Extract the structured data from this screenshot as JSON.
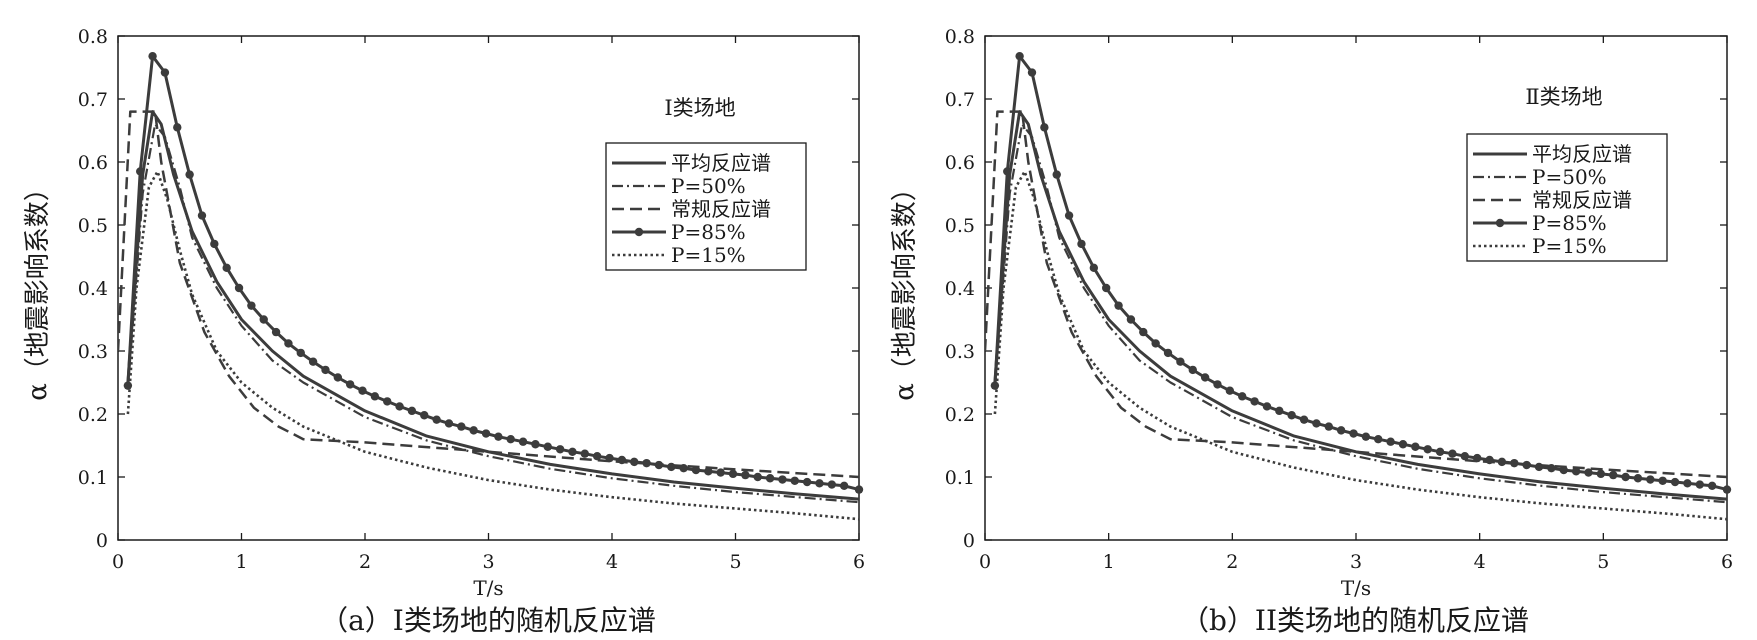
{
  "chart_data": [
    {
      "type": "line",
      "site_label": "I类场地",
      "caption": "（a）I类场地的随机反应谱",
      "xlabel": "T/s",
      "ylabel": "α（地震影响系数）",
      "xlim": [
        0,
        6
      ],
      "ylim": [
        0,
        0.8
      ],
      "xticks": [
        "0",
        "1",
        "2",
        "3",
        "4",
        "5",
        "6"
      ],
      "yticks": [
        "0",
        "0.1",
        "0.2",
        "0.3",
        "0.4",
        "0.5",
        "0.6",
        "0.7",
        "0.8"
      ],
      "legend_position": "top-right",
      "series": [
        {
          "name": "平均反应谱",
          "style": "solid",
          "x": [
            0.08,
            0.2,
            0.28,
            0.35,
            0.45,
            0.6,
            0.8,
            1.0,
            1.25,
            1.5,
            2.0,
            2.5,
            3.0,
            3.5,
            4.0,
            4.5,
            5.0,
            5.5,
            6.0
          ],
          "y": [
            0.25,
            0.58,
            0.68,
            0.66,
            0.58,
            0.49,
            0.41,
            0.35,
            0.3,
            0.26,
            0.205,
            0.165,
            0.14,
            0.12,
            0.105,
            0.092,
            0.082,
            0.073,
            0.065
          ]
        },
        {
          "name": "P=50%",
          "style": "dashdot",
          "x": [
            0.08,
            0.2,
            0.3,
            0.38,
            0.5,
            0.6,
            0.8,
            1.0,
            1.25,
            1.5,
            2.0,
            2.5,
            3.0,
            3.5,
            4.0,
            4.5,
            5.0,
            5.5,
            6.0
          ],
          "y": [
            0.24,
            0.55,
            0.66,
            0.64,
            0.56,
            0.48,
            0.4,
            0.34,
            0.285,
            0.25,
            0.195,
            0.158,
            0.133,
            0.113,
            0.098,
            0.086,
            0.076,
            0.068,
            0.06
          ]
        },
        {
          "name": "常规反应谱",
          "style": "dashed",
          "x": [
            0.0,
            0.1,
            0.3,
            0.35,
            0.5,
            0.7,
            0.9,
            1.1,
            1.3,
            1.5,
            2.0,
            3.0,
            4.0,
            5.0,
            6.0
          ],
          "y": [
            0.3,
            0.68,
            0.68,
            0.6,
            0.44,
            0.33,
            0.26,
            0.21,
            0.18,
            0.16,
            0.155,
            0.14,
            0.125,
            0.112,
            0.1
          ]
        },
        {
          "name": "P=85%",
          "style": "solid-marker",
          "x": [
            0.08,
            0.18,
            0.28,
            0.38,
            0.48,
            0.58,
            0.68,
            0.78,
            0.88,
            0.98,
            1.08,
            1.18,
            1.28,
            1.38,
            1.48,
            1.58,
            1.68,
            1.78,
            1.88,
            1.98,
            2.08,
            2.18,
            2.28,
            2.38,
            2.48,
            2.58,
            2.68,
            2.78,
            2.88,
            2.98,
            3.08,
            3.18,
            3.28,
            3.38,
            3.48,
            3.58,
            3.68,
            3.78,
            3.88,
            3.98,
            4.08,
            4.18,
            4.28,
            4.38,
            4.48,
            4.58,
            4.68,
            4.78,
            4.88,
            4.98,
            5.08,
            5.18,
            5.28,
            5.38,
            5.48,
            5.58,
            5.68,
            5.78,
            5.88,
            6.0
          ],
          "y": [
            0.245,
            0.585,
            0.768,
            0.742,
            0.655,
            0.58,
            0.515,
            0.47,
            0.432,
            0.4,
            0.372,
            0.35,
            0.33,
            0.312,
            0.297,
            0.283,
            0.27,
            0.258,
            0.247,
            0.237,
            0.228,
            0.22,
            0.212,
            0.205,
            0.198,
            0.191,
            0.185,
            0.18,
            0.174,
            0.169,
            0.164,
            0.16,
            0.156,
            0.152,
            0.148,
            0.144,
            0.14,
            0.137,
            0.133,
            0.13,
            0.127,
            0.124,
            0.122,
            0.119,
            0.116,
            0.114,
            0.111,
            0.109,
            0.107,
            0.105,
            0.103,
            0.1,
            0.098,
            0.096,
            0.094,
            0.092,
            0.09,
            0.088,
            0.086,
            0.08
          ]
        },
        {
          "name": "P=15%",
          "style": "dotted",
          "x": [
            0.08,
            0.15,
            0.25,
            0.32,
            0.4,
            0.5,
            0.6,
            0.8,
            1.0,
            1.25,
            1.5,
            2.0,
            2.5,
            3.0,
            3.5,
            4.0,
            4.5,
            5.0,
            5.5,
            6.0
          ],
          "y": [
            0.2,
            0.4,
            0.56,
            0.585,
            0.54,
            0.46,
            0.39,
            0.3,
            0.25,
            0.21,
            0.18,
            0.14,
            0.115,
            0.095,
            0.08,
            0.068,
            0.058,
            0.05,
            0.042,
            0.033
          ]
        }
      ]
    },
    {
      "type": "line",
      "site_label": "Ⅱ类场地",
      "caption": "（b）II类场地的随机反应谱",
      "xlabel": "T/s",
      "ylabel": "α（地震影响系数）",
      "xlim": [
        0,
        6
      ],
      "ylim": [
        0,
        0.8
      ],
      "xticks": [
        "0",
        "1",
        "2",
        "3",
        "4",
        "5",
        "6"
      ],
      "yticks": [
        "0",
        "0.1",
        "0.2",
        "0.3",
        "0.4",
        "0.5",
        "0.6",
        "0.7",
        "0.8"
      ],
      "legend_position": "top-right",
      "series": [
        {
          "name": "平均反应谱",
          "style": "solid",
          "x": [
            0.08,
            0.2,
            0.28,
            0.35,
            0.45,
            0.6,
            0.8,
            1.0,
            1.25,
            1.5,
            2.0,
            2.5,
            3.0,
            3.5,
            4.0,
            4.5,
            5.0,
            5.5,
            6.0
          ],
          "y": [
            0.25,
            0.58,
            0.68,
            0.66,
            0.58,
            0.49,
            0.41,
            0.35,
            0.3,
            0.26,
            0.205,
            0.165,
            0.14,
            0.12,
            0.105,
            0.092,
            0.082,
            0.073,
            0.065
          ]
        },
        {
          "name": "P=50%",
          "style": "dashdot",
          "x": [
            0.08,
            0.2,
            0.3,
            0.38,
            0.5,
            0.6,
            0.8,
            1.0,
            1.25,
            1.5,
            2.0,
            2.5,
            3.0,
            3.5,
            4.0,
            4.5,
            5.0,
            5.5,
            6.0
          ],
          "y": [
            0.24,
            0.55,
            0.66,
            0.64,
            0.56,
            0.48,
            0.4,
            0.34,
            0.285,
            0.25,
            0.195,
            0.158,
            0.133,
            0.113,
            0.098,
            0.086,
            0.076,
            0.068,
            0.06
          ]
        },
        {
          "name": "常规反应谱",
          "style": "dashed",
          "x": [
            0.0,
            0.1,
            0.3,
            0.35,
            0.5,
            0.7,
            0.9,
            1.1,
            1.3,
            1.5,
            2.0,
            3.0,
            4.0,
            5.0,
            6.0
          ],
          "y": [
            0.3,
            0.68,
            0.68,
            0.6,
            0.44,
            0.33,
            0.26,
            0.21,
            0.18,
            0.16,
            0.155,
            0.14,
            0.125,
            0.112,
            0.1
          ]
        },
        {
          "name": "P=85%",
          "style": "solid-marker",
          "x": [
            0.08,
            0.18,
            0.28,
            0.38,
            0.48,
            0.58,
            0.68,
            0.78,
            0.88,
            0.98,
            1.08,
            1.18,
            1.28,
            1.38,
            1.48,
            1.58,
            1.68,
            1.78,
            1.88,
            1.98,
            2.08,
            2.18,
            2.28,
            2.38,
            2.48,
            2.58,
            2.68,
            2.78,
            2.88,
            2.98,
            3.08,
            3.18,
            3.28,
            3.38,
            3.48,
            3.58,
            3.68,
            3.78,
            3.88,
            3.98,
            4.08,
            4.18,
            4.28,
            4.38,
            4.48,
            4.58,
            4.68,
            4.78,
            4.88,
            4.98,
            5.08,
            5.18,
            5.28,
            5.38,
            5.48,
            5.58,
            5.68,
            5.78,
            5.88,
            6.0
          ],
          "y": [
            0.245,
            0.585,
            0.768,
            0.742,
            0.655,
            0.58,
            0.515,
            0.47,
            0.432,
            0.4,
            0.372,
            0.35,
            0.33,
            0.312,
            0.297,
            0.283,
            0.27,
            0.258,
            0.247,
            0.237,
            0.228,
            0.22,
            0.212,
            0.205,
            0.198,
            0.191,
            0.185,
            0.18,
            0.174,
            0.169,
            0.164,
            0.16,
            0.156,
            0.152,
            0.148,
            0.144,
            0.14,
            0.137,
            0.133,
            0.13,
            0.127,
            0.124,
            0.122,
            0.119,
            0.116,
            0.114,
            0.111,
            0.109,
            0.107,
            0.105,
            0.103,
            0.1,
            0.098,
            0.096,
            0.094,
            0.092,
            0.09,
            0.088,
            0.086,
            0.08
          ]
        },
        {
          "name": "P=15%",
          "style": "dotted",
          "x": [
            0.08,
            0.15,
            0.25,
            0.32,
            0.4,
            0.5,
            0.6,
            0.8,
            1.0,
            1.25,
            1.5,
            2.0,
            2.5,
            3.0,
            3.5,
            4.0,
            4.5,
            5.0,
            5.5,
            6.0
          ],
          "y": [
            0.2,
            0.4,
            0.56,
            0.585,
            0.54,
            0.46,
            0.39,
            0.3,
            0.25,
            0.21,
            0.18,
            0.14,
            0.115,
            0.095,
            0.08,
            0.068,
            0.058,
            0.05,
            0.042,
            0.033
          ]
        }
      ]
    }
  ]
}
